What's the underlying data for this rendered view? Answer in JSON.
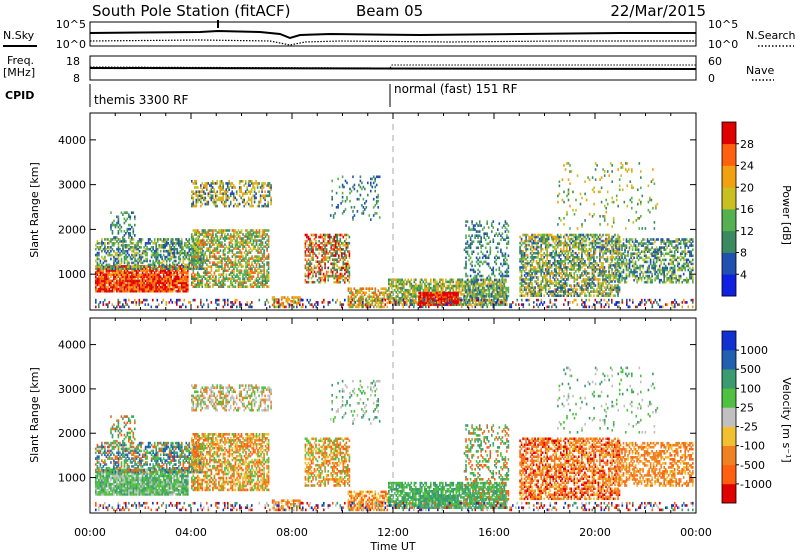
{
  "header": {
    "station": "South Pole Station (fitACF)",
    "beam": "Beam 05",
    "date": "22/Mar/2015"
  },
  "top_strips": {
    "nsky_label": "N.Sky",
    "nsearch_label": "N.Search",
    "noise_ticks_left": [
      "10^5",
      "10^0"
    ],
    "noise_ticks_right": [
      "10^5",
      "10^0"
    ],
    "freq_label_1": "Freq.",
    "freq_label_2": "[MHz]",
    "freq_ticks_left": [
      "18",
      "8"
    ],
    "nave_label": "Nave",
    "nave_ticks_right": [
      "60",
      "0"
    ],
    "cpid_label": "CPID",
    "cpid_1": "themis 3300 RF",
    "cpid_2": "normal (fast) 151 RF"
  },
  "chart_data": [
    {
      "type": "heatmap",
      "panel": "power",
      "ylabel": "Slant Range [km]",
      "yticks": [
        1000,
        2000,
        3000,
        4000
      ],
      "ylim": [
        200,
        4600
      ],
      "xlim": [
        0,
        24
      ],
      "colorbar_label": "Power [dB]",
      "colorbar_ticks": [
        "4",
        "8",
        "12",
        "16",
        "20",
        "24",
        "28"
      ],
      "colorbar_colors": [
        "#1020e0",
        "#2050b0",
        "#3a8a60",
        "#55b050",
        "#c8c020",
        "#f0a010",
        "#ff6010",
        "#e00000"
      ]
    },
    {
      "type": "heatmap",
      "panel": "velocity",
      "ylabel": "Slant Range [km]",
      "yticks": [
        1000,
        2000,
        3000,
        4000
      ],
      "ylim": [
        200,
        4600
      ],
      "xlim": [
        0,
        24
      ],
      "colorbar_label": "Velocity [m s⁻¹]",
      "colorbar_ticks": [
        "-1000",
        "-500",
        "-100",
        "-25",
        "25",
        "100",
        "500",
        "1000"
      ],
      "colorbar_colors": [
        "#e00000",
        "#ff6010",
        "#f08020",
        "#f0c030",
        "#c0c0c0",
        "#50c040",
        "#3a9a70",
        "#2060b0",
        "#1030d0"
      ]
    }
  ],
  "x_axis": {
    "ticks": [
      "00:00",
      "04:00",
      "08:00",
      "12:00",
      "16:00",
      "20:00",
      "00:00"
    ],
    "label": "Time UT"
  }
}
